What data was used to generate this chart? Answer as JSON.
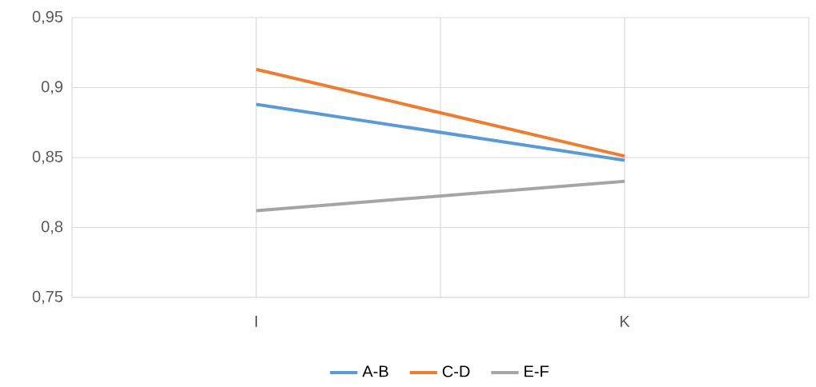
{
  "chart_data": {
    "type": "line",
    "categories": [
      "I",
      "K"
    ],
    "series": [
      {
        "name": "A-B",
        "color": "#5b9bd5",
        "values": [
          0.888,
          0.848
        ]
      },
      {
        "name": "C-D",
        "color": "#ed7d31",
        "values": [
          0.913,
          0.851
        ]
      },
      {
        "name": "E-F",
        "color": "#a5a5a5",
        "values": [
          0.812,
          0.833
        ]
      }
    ],
    "ylim": [
      0.75,
      0.95
    ],
    "yticks": [
      {
        "value": 0.75,
        "label": "0,75"
      },
      {
        "value": 0.8,
        "label": "0,8"
      },
      {
        "value": 0.85,
        "label": "0,85"
      },
      {
        "value": 0.9,
        "label": "0,9"
      },
      {
        "value": 0.95,
        "label": "0,95"
      }
    ],
    "grid": true,
    "legend": "bottom",
    "marker": "none",
    "line_style": "solid"
  }
}
